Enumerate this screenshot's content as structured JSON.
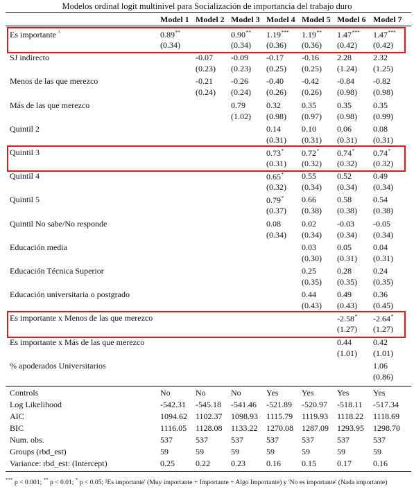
{
  "caption": "Modelos ordinal logit multinivel para Socialización de importancia del trabajo duro",
  "columns": [
    "Model 1",
    "Model 2",
    "Model 3",
    "Model 4",
    "Model 5",
    "Model 6",
    "Model 7"
  ],
  "coef_rows": [
    {
      "label": "Es importante",
      "label_sup": "¹",
      "highlight": true,
      "est": [
        "0.89",
        "",
        "0.90",
        "1.19",
        "1.19",
        "1.47",
        "1.47"
      ],
      "stars": [
        "**",
        "",
        "**",
        "***",
        "**",
        "***",
        "***"
      ],
      "se": [
        "(0.34)",
        "",
        "(0.34)",
        "(0.36)",
        "(0.36)",
        "(0.42)",
        "(0.42)"
      ]
    },
    {
      "label": "SJ indirecto",
      "label_sup": "",
      "highlight": false,
      "est": [
        "",
        "-0.07",
        "-0.09",
        "-0.17",
        "-0.16",
        "2.28",
        "2.32"
      ],
      "stars": [
        "",
        "",
        "",
        "",
        "",
        "",
        ""
      ],
      "se": [
        "",
        "(0.23)",
        "(0.23)",
        "(0.25)",
        "(0.25)",
        "(1.24)",
        "(1.25)"
      ]
    },
    {
      "label": "Menos de las que merezco",
      "label_sup": "",
      "highlight": false,
      "est": [
        "",
        "-0.21",
        "-0.26",
        "-0.40",
        "-0.42",
        "-0.84",
        "-0.82"
      ],
      "stars": [
        "",
        "",
        "",
        "",
        "",
        "",
        ""
      ],
      "se": [
        "",
        "(0.24)",
        "(0.24)",
        "(0.26)",
        "(0.26)",
        "(0.98)",
        "(0.98)"
      ]
    },
    {
      "label": "Más de las que merezco",
      "label_sup": "",
      "highlight": false,
      "est": [
        "",
        "",
        "0.79",
        "0.32",
        "0.35",
        "0.35",
        "0.35"
      ],
      "stars": [
        "",
        "",
        "",
        "",
        "",
        "",
        ""
      ],
      "se": [
        "",
        "",
        "(1.02)",
        "(0.98)",
        "(0.97)",
        "(0.98)",
        "(0.99)"
      ]
    },
    {
      "label": "Quintil 2",
      "label_sup": "",
      "highlight": false,
      "est": [
        "",
        "",
        "",
        "0.14",
        "0.10",
        "0.06",
        "0.08"
      ],
      "stars": [
        "",
        "",
        "",
        "",
        "",
        "",
        ""
      ],
      "se": [
        "",
        "",
        "",
        "(0.31)",
        "(0.31)",
        "(0.31)",
        "(0.31)"
      ]
    },
    {
      "label": "Quintil 3",
      "label_sup": "",
      "highlight": true,
      "est": [
        "",
        "",
        "",
        "0.73",
        "0.72",
        "0.74",
        "0.74"
      ],
      "stars": [
        "",
        "",
        "",
        "*",
        "*",
        "*",
        "*"
      ],
      "se": [
        "",
        "",
        "",
        "(0.31)",
        "(0.32)",
        "(0.32)",
        "(0.32)"
      ]
    },
    {
      "label": "Quintil 4",
      "label_sup": "",
      "highlight": false,
      "est": [
        "",
        "",
        "",
        "0.65",
        "0.55",
        "0.52",
        "0.49"
      ],
      "stars": [
        "",
        "",
        "",
        "*",
        "",
        "",
        ""
      ],
      "se": [
        "",
        "",
        "",
        "(0.32)",
        "(0.34)",
        "(0.34)",
        "(0.34)"
      ]
    },
    {
      "label": "Quintil 5",
      "label_sup": "",
      "highlight": false,
      "est": [
        "",
        "",
        "",
        "0.79",
        "0.66",
        "0.58",
        "0.54"
      ],
      "stars": [
        "",
        "",
        "",
        "*",
        "",
        "",
        ""
      ],
      "se": [
        "",
        "",
        "",
        "(0.37)",
        "(0.38)",
        "(0.38)",
        "(0.38)"
      ]
    },
    {
      "label": "Quintil No sabe/No responde",
      "label_sup": "",
      "highlight": false,
      "est": [
        "",
        "",
        "",
        "0.08",
        "0.02",
        "-0.03",
        "-0.05"
      ],
      "stars": [
        "",
        "",
        "",
        "",
        "",
        "",
        ""
      ],
      "se": [
        "",
        "",
        "",
        "(0.34)",
        "(0.34)",
        "(0.34)",
        "(0.34)"
      ]
    },
    {
      "label": "Educación media",
      "label_sup": "",
      "highlight": false,
      "est": [
        "",
        "",
        "",
        "",
        "0.03",
        "0.05",
        "0.04"
      ],
      "stars": [
        "",
        "",
        "",
        "",
        "",
        "",
        ""
      ],
      "se": [
        "",
        "",
        "",
        "",
        "(0.30)",
        "(0.31)",
        "(0.31)"
      ]
    },
    {
      "label": "Educación Técnica Superior",
      "label_sup": "",
      "highlight": false,
      "est": [
        "",
        "",
        "",
        "",
        "0.25",
        "0.28",
        "0.24"
      ],
      "stars": [
        "",
        "",
        "",
        "",
        "",
        "",
        ""
      ],
      "se": [
        "",
        "",
        "",
        "",
        "(0.35)",
        "(0.35)",
        "(0.35)"
      ]
    },
    {
      "label": "Educación universitaria o postgrado",
      "label_sup": "",
      "highlight": false,
      "est": [
        "",
        "",
        "",
        "",
        "0.44",
        "0.49",
        "0.36"
      ],
      "stars": [
        "",
        "",
        "",
        "",
        "",
        "",
        ""
      ],
      "se": [
        "",
        "",
        "",
        "",
        "(0.43)",
        "(0.43)",
        "(0.45)"
      ]
    },
    {
      "label": "Es importante x Menos de las que merezco",
      "label_sup": "",
      "highlight": true,
      "est": [
        "",
        "",
        "",
        "",
        "",
        "-2.58",
        "-2.64"
      ],
      "stars": [
        "",
        "",
        "",
        "",
        "",
        "*",
        "*"
      ],
      "se": [
        "",
        "",
        "",
        "",
        "",
        "(1.27)",
        "(1.27)"
      ]
    },
    {
      "label": "Es importante x Más de las que merezco",
      "label_sup": "",
      "highlight": false,
      "est": [
        "",
        "",
        "",
        "",
        "",
        "0.44",
        "0.42"
      ],
      "stars": [
        "",
        "",
        "",
        "",
        "",
        "",
        ""
      ],
      "se": [
        "",
        "",
        "",
        "",
        "",
        "(1.01)",
        "(1.01)"
      ]
    },
    {
      "label": "% apoderados Universitarios",
      "label_sup": "",
      "highlight": false,
      "est": [
        "",
        "",
        "",
        "",
        "",
        "",
        "1.06"
      ],
      "stars": [
        "",
        "",
        "",
        "",
        "",
        "",
        ""
      ],
      "se": [
        "",
        "",
        "",
        "",
        "",
        "",
        "(0.86)"
      ]
    }
  ],
  "stat_rows": [
    {
      "label": "Controls",
      "values": [
        "No",
        "No",
        "No",
        "Yes",
        "Yes",
        "Yes",
        "Yes"
      ]
    },
    {
      "label": "Log Likelihood",
      "values": [
        "-542.31",
        "-545.18",
        "-541.46",
        "-521.89",
        "-520.97",
        "-518.11",
        "-517.34"
      ]
    },
    {
      "label": "AIC",
      "values": [
        "1094.62",
        "1102.37",
        "1098.93",
        "1115.79",
        "1119.93",
        "1118.22",
        "1118.69"
      ]
    },
    {
      "label": "BIC",
      "values": [
        "1116.05",
        "1128.08",
        "1133.22",
        "1270.08",
        "1287.09",
        "1293.95",
        "1298.70"
      ]
    },
    {
      "label": "Num. obs.",
      "values": [
        "537",
        "537",
        "537",
        "537",
        "537",
        "537",
        "537"
      ]
    },
    {
      "label": "Groups (rbd_est)",
      "values": [
        "59",
        "59",
        "59",
        "59",
        "59",
        "59",
        "59"
      ]
    },
    {
      "label": "Variance: rbd_est: (Intercept)",
      "values": [
        "0.25",
        "0.22",
        "0.23",
        "0.16",
        "0.15",
        "0.17",
        "0.16"
      ]
    }
  ],
  "note": {
    "p_legend": [
      {
        "stars": "***",
        "text": " p < 0.001; "
      },
      {
        "stars": "**",
        "text": " p < 0.01; "
      },
      {
        "stars": "*",
        "text": " p < 0.05; "
      }
    ],
    "rest": "¹Es importante' (Muy importante + Importante + Algo Importante) y 'No es importante' (Nada importante)"
  },
  "highlight_color": "#e0161b"
}
